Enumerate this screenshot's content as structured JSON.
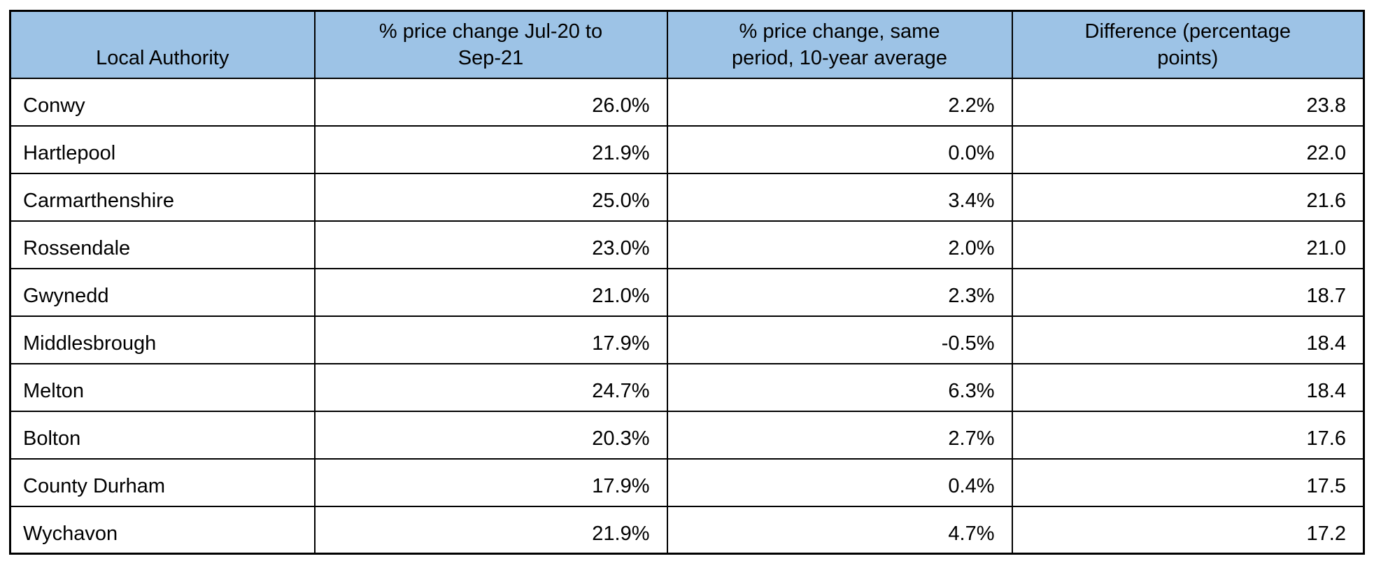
{
  "page": {
    "background": "#FFFFFF"
  },
  "colors": {
    "header_bg": "#9DC3E6",
    "border": "#000000",
    "text": "#000000"
  },
  "table": {
    "columns": [
      {
        "label": "Local Authority",
        "align": "left"
      },
      {
        "label": "% price change Jul-20 to\nSep-21",
        "align": "right"
      },
      {
        "label": "% price change, same\nperiod, 10-year average",
        "align": "right"
      },
      {
        "label": "Difference (percentage\npoints)",
        "align": "right"
      }
    ],
    "rows": [
      [
        "Conwy",
        "26.0%",
        "2.2%",
        "23.8"
      ],
      [
        "Hartlepool",
        "21.9%",
        "0.0%",
        "22.0"
      ],
      [
        "Carmarthenshire",
        "25.0%",
        "3.4%",
        "21.6"
      ],
      [
        "Rossendale",
        "23.0%",
        "2.0%",
        "21.0"
      ],
      [
        "Gwynedd",
        "21.0%",
        "2.3%",
        "18.7"
      ],
      [
        "Middlesbrough",
        "17.9%",
        "-0.5%",
        "18.4"
      ],
      [
        "Melton",
        "24.7%",
        "6.3%",
        "18.4"
      ],
      [
        "Bolton",
        "20.3%",
        "2.7%",
        "17.6"
      ],
      [
        "County Durham",
        "17.9%",
        "0.4%",
        "17.5"
      ],
      [
        "Wychavon",
        "21.9%",
        "4.7%",
        "17.2"
      ]
    ]
  }
}
